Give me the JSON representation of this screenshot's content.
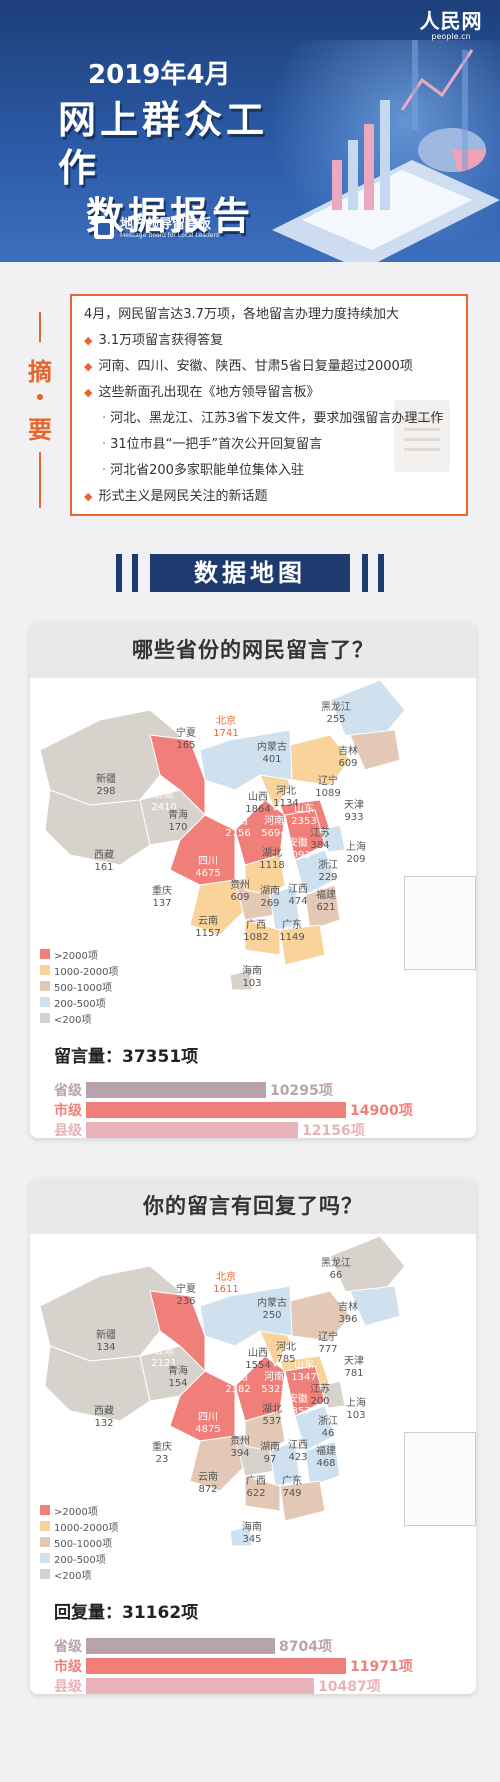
{
  "logo": {
    "cn": "人民网",
    "en": "people.cn"
  },
  "header": {
    "date": "2019年4月",
    "title_line1": "网上群众工作",
    "title_line2": "数据报告",
    "badge_cn": "地方领导留言板",
    "badge_en": "Message Board for Local Leaders"
  },
  "summary": {
    "side_chars": [
      "摘",
      "要"
    ],
    "lines": [
      {
        "text": "4月，网民留言达3.7万项，各地留言办理力度持续加大"
      },
      {
        "text": "3.1万项留言获得答复"
      },
      {
        "text": "河南、四川、安徽、陕西、甘肃5省日复量超过2000项"
      },
      {
        "text": "这些新面孔出现在《地方领导留言板》"
      },
      {
        "text": "河北、黑龙江、江苏3省下发文件，要求加强留言办理工作"
      },
      {
        "text": "31位市县“一把手”首次公开回复留言"
      },
      {
        "text": "河北省200多家职能单位集体入驻"
      },
      {
        "text": "形式主义是网民关注的新话题"
      }
    ]
  },
  "section_title": "数据地图",
  "colors": {
    "gt2000": "#f07f79",
    "c1000_2000": "#f9d39a",
    "c500_1000": "#e3c9b5",
    "c200_500": "#cfe0ee",
    "lt200": "#d8d2cd",
    "accent": "#e8662e",
    "navy": "#1e3a6e"
  },
  "legend": [
    {
      "label": ">2000项",
      "color": "#f07f79"
    },
    {
      "label": "1000-2000项",
      "color": "#f9d39a"
    },
    {
      "label": "500-1000项",
      "color": "#e3c9b5"
    },
    {
      "label": "200-500项",
      "color": "#cfe0ee"
    },
    {
      "label": "<200项",
      "color": "#d8d2cd"
    }
  ],
  "card1": {
    "title": "哪些省份的网民留言了？",
    "provinces": [
      {
        "name": "北京",
        "value": "1741"
      },
      {
        "name": "黑龙江",
        "value": "255"
      },
      {
        "name": "宁夏",
        "value": "165"
      },
      {
        "name": "内蒙古",
        "value": "401"
      },
      {
        "name": "吉林",
        "value": "609"
      },
      {
        "name": "新疆",
        "value": "298"
      },
      {
        "name": "辽宁",
        "value": "1089"
      },
      {
        "name": "甘肃",
        "value": "2410"
      },
      {
        "name": "山西",
        "value": "1864"
      },
      {
        "name": "河北",
        "value": "1134"
      },
      {
        "name": "天津",
        "value": "933"
      },
      {
        "name": "青海",
        "value": "170"
      },
      {
        "name": "山东",
        "value": "2353"
      },
      {
        "name": "陕西",
        "value": "2756"
      },
      {
        "name": "河南",
        "value": "5694"
      },
      {
        "name": "江苏",
        "value": "384"
      },
      {
        "name": "上海",
        "value": "209"
      },
      {
        "name": "西藏",
        "value": "161"
      },
      {
        "name": "安徽",
        "value": "3093"
      },
      {
        "name": "湖北",
        "value": "1118"
      },
      {
        "name": "四川",
        "value": "4675"
      },
      {
        "name": "浙江",
        "value": "229"
      },
      {
        "name": "重庆",
        "value": "137"
      },
      {
        "name": "贵州",
        "value": "609"
      },
      {
        "name": "湖南",
        "value": "269"
      },
      {
        "name": "江西",
        "value": "474"
      },
      {
        "name": "福建",
        "value": "621"
      },
      {
        "name": "云南",
        "value": "1157"
      },
      {
        "name": "广西",
        "value": "1082"
      },
      {
        "name": "广东",
        "value": "1149"
      },
      {
        "name": "海南",
        "value": "103"
      }
    ],
    "total_label": "留言量：37351项",
    "bars": [
      {
        "label": "省级",
        "value": "10295项",
        "num": 10295,
        "color": "#b8a3ac"
      },
      {
        "label": "市级",
        "value": "14900项",
        "num": 14900,
        "color": "#f07f79"
      },
      {
        "label": "县级",
        "value": "12156项",
        "num": 12156,
        "color": "#e8b3b8"
      }
    ]
  },
  "card2": {
    "title": "你的留言有回复了吗？",
    "provinces": [
      {
        "name": "北京",
        "value": "1611"
      },
      {
        "name": "黑龙江",
        "value": "66"
      },
      {
        "name": "宁夏",
        "value": "236"
      },
      {
        "name": "内蒙古",
        "value": "250"
      },
      {
        "name": "吉林",
        "value": "396"
      },
      {
        "name": "新疆",
        "value": "134"
      },
      {
        "name": "辽宁",
        "value": "777"
      },
      {
        "name": "甘肃",
        "value": "2121"
      },
      {
        "name": "河北",
        "value": "785"
      },
      {
        "name": "天津",
        "value": "781"
      },
      {
        "name": "青海",
        "value": "154"
      },
      {
        "name": "山西",
        "value": "1554"
      },
      {
        "name": "山东",
        "value": "1347"
      },
      {
        "name": "陕西",
        "value": "2382"
      },
      {
        "name": "河南",
        "value": "5323"
      },
      {
        "name": "江苏",
        "value": "200"
      },
      {
        "name": "西藏",
        "value": "132"
      },
      {
        "name": "安徽",
        "value": "3357"
      },
      {
        "name": "上海",
        "value": "103"
      },
      {
        "name": "湖北",
        "value": "537"
      },
      {
        "name": "四川",
        "value": "4875"
      },
      {
        "name": "浙江",
        "value": "46"
      },
      {
        "name": "江西",
        "value": "423"
      },
      {
        "name": "贵州",
        "value": "394"
      },
      {
        "name": "湖南",
        "value": "97"
      },
      {
        "name": "福建",
        "value": "468"
      },
      {
        "name": "重庆",
        "value": "23"
      },
      {
        "name": "云南",
        "value": "872"
      },
      {
        "name": "广西",
        "value": "622"
      },
      {
        "name": "广东",
        "value": "749"
      },
      {
        "name": "海南",
        "value": "345"
      }
    ],
    "total_label": "回复量：31162项",
    "bars": [
      {
        "label": "省级",
        "value": "8704项",
        "num": 8704,
        "color": "#b8a3ac"
      },
      {
        "label": "市级",
        "value": "11971项",
        "num": 11971,
        "color": "#f07f79"
      },
      {
        "label": "县级",
        "value": "10487项",
        "num": 10487,
        "color": "#e8b3b8"
      }
    ]
  }
}
